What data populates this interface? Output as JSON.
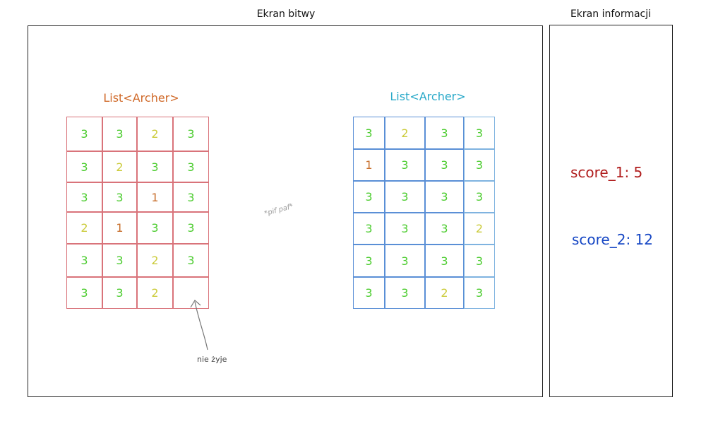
{
  "frames": {
    "battle_title": "Ekran bitwy",
    "info_title": "Ekran informacji"
  },
  "team_left": {
    "label": "List<Archer>",
    "color": "#d06a2a",
    "cells": [
      [
        "3",
        "3",
        "2",
        "3"
      ],
      [
        "3",
        "2",
        "3",
        "3"
      ],
      [
        "3",
        "3",
        "1",
        "3"
      ],
      [
        "2",
        "1",
        "3",
        "3"
      ],
      [
        "3",
        "3",
        "2",
        "3"
      ],
      [
        "3",
        "3",
        "2",
        ""
      ]
    ]
  },
  "team_right": {
    "label": "List<Archer>",
    "color": "#29a9c9",
    "cells": [
      [
        "3",
        "2",
        "3",
        "3"
      ],
      [
        "1",
        "3",
        "3",
        "3"
      ],
      [
        "3",
        "3",
        "3",
        "3"
      ],
      [
        "3",
        "3",
        "3",
        "2"
      ],
      [
        "3",
        "3",
        "3",
        "3"
      ],
      [
        "3",
        "3",
        "2",
        "3"
      ]
    ]
  },
  "effect_text": "*pif paf*",
  "annotation": "nie żyje",
  "scores": {
    "score_1": "score_1: 5",
    "score_1_color": "#b01c1c",
    "score_2": "score_2: 12",
    "score_2_color": "#1546c4"
  }
}
